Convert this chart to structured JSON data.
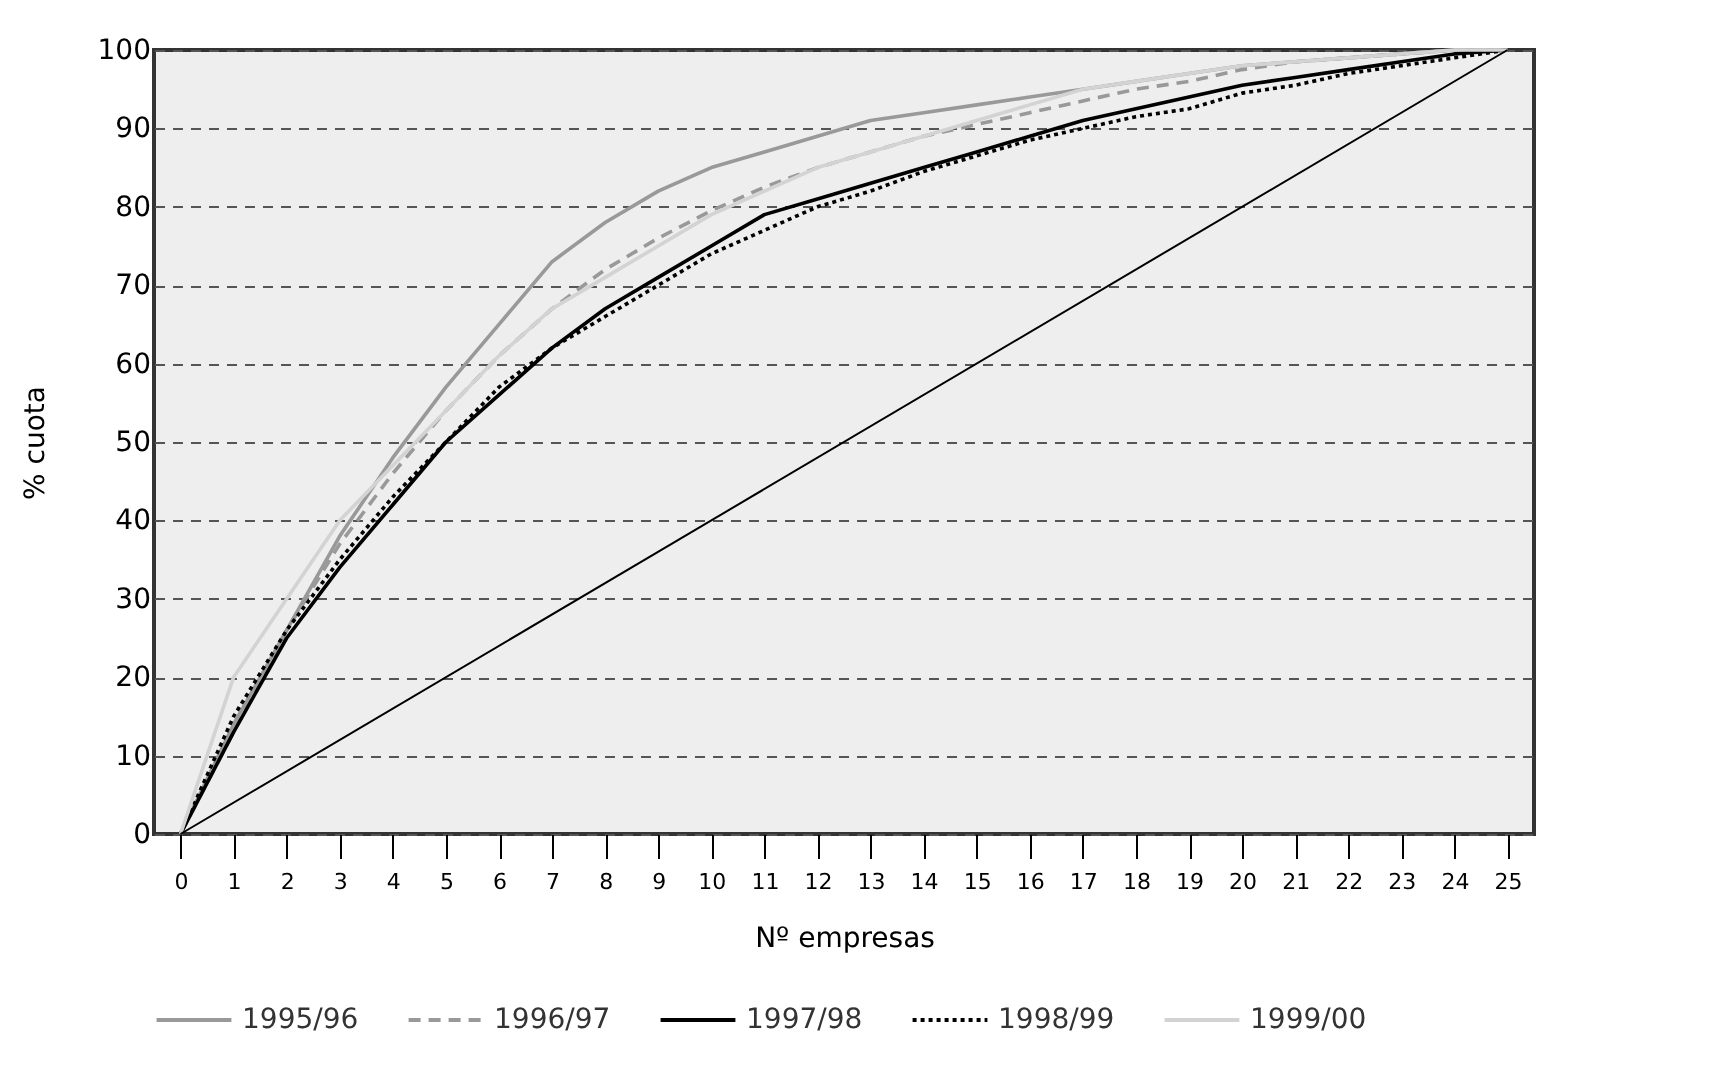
{
  "chart_data": {
    "type": "line",
    "xlabel": "Nº empresas",
    "ylabel": "% cuota",
    "x": [
      0,
      1,
      2,
      3,
      4,
      5,
      6,
      7,
      8,
      9,
      10,
      11,
      12,
      13,
      14,
      15,
      16,
      17,
      18,
      19,
      20,
      21,
      22,
      23,
      24,
      25
    ],
    "xlim": [
      -0.5,
      25.5
    ],
    "xticks": [
      0,
      1,
      2,
      3,
      4,
      5,
      6,
      7,
      8,
      9,
      10,
      11,
      12,
      13,
      14,
      15,
      16,
      17,
      18,
      19,
      20,
      21,
      22,
      23,
      24,
      25
    ],
    "ylim": [
      0,
      100
    ],
    "yticks": [
      0,
      10,
      20,
      30,
      40,
      50,
      60,
      70,
      80,
      90,
      100
    ],
    "grid": "y",
    "legend": "bottom",
    "series": [
      {
        "name": "1995/96",
        "color": "#999999",
        "line_style": "solid",
        "values": [
          0,
          14,
          26,
          38,
          48,
          57,
          65,
          73,
          78,
          82,
          85,
          87,
          89,
          91,
          92,
          93,
          94,
          95,
          96,
          97,
          98,
          98.5,
          99,
          99.5,
          100,
          100
        ]
      },
      {
        "name": "1996/97",
        "color": "#999999",
        "line_style": "dashed",
        "values": [
          0,
          13,
          26,
          37,
          46,
          54,
          61,
          67,
          72,
          76,
          79.5,
          82.5,
          85,
          87,
          89,
          90.5,
          92,
          93.5,
          95,
          96,
          97.5,
          98.5,
          99,
          99.5,
          100,
          100
        ]
      },
      {
        "name": "1997/98",
        "color": "#000000",
        "line_style": "solid",
        "values": [
          0,
          13,
          25,
          34,
          42,
          50,
          56,
          62,
          67,
          71,
          75,
          79,
          81,
          83,
          85,
          87,
          89,
          91,
          92.5,
          94,
          95.5,
          96.5,
          97.5,
          98.5,
          99.5,
          100
        ]
      },
      {
        "name": "1998/99",
        "color": "#000000",
        "line_style": "dotted",
        "values": [
          0,
          15,
          26,
          35,
          43,
          50,
          57,
          62,
          66,
          70,
          74,
          77,
          80,
          82,
          84.5,
          86.5,
          88.5,
          90,
          91.5,
          92.5,
          94.5,
          95.5,
          97,
          98,
          99,
          100
        ]
      },
      {
        "name": "1999/00",
        "color": "#d3d3d3",
        "line_style": "solid",
        "values": [
          0,
          20,
          30,
          40,
          47,
          54,
          61,
          67,
          71,
          75,
          79,
          82,
          85,
          87,
          89,
          91,
          93,
          95,
          96,
          97,
          98,
          98.5,
          99,
          99.5,
          100,
          100
        ]
      },
      {
        "type": "line",
        "color": "#000000",
        "line_style": "solid",
        "x": [
          0,
          25
        ],
        "values": [
          0,
          100
        ]
      }
    ]
  }
}
